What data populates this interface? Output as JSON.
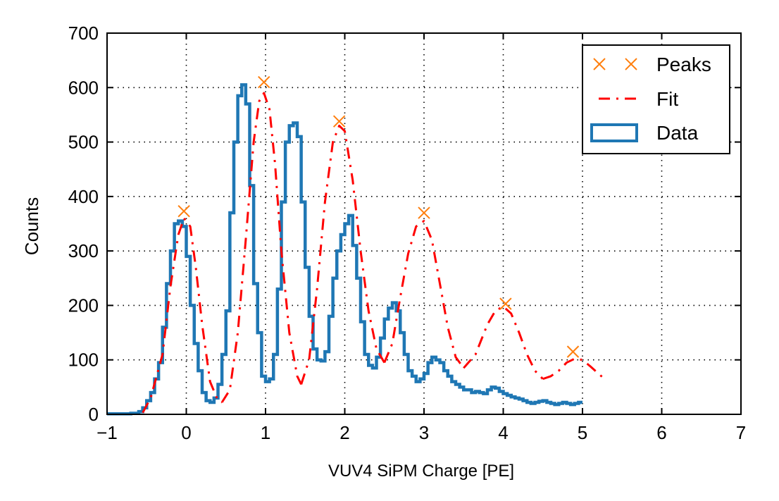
{
  "chart_data": {
    "type": "histogram",
    "title": "",
    "xlabel": "VUV4 SiPM Charge [PE]",
    "ylabel": "Counts",
    "xlim": [
      -1,
      7
    ],
    "ylim": [
      0,
      700
    ],
    "grid": true,
    "legend_position": "top-right",
    "x_ticks": [
      -1,
      0,
      1,
      2,
      3,
      4,
      5,
      6,
      7
    ],
    "x_tick_labels": [
      "−1",
      "0",
      "1",
      "2",
      "3",
      "4",
      "5",
      "6",
      "7"
    ],
    "y_ticks": [
      0,
      100,
      200,
      300,
      400,
      500,
      600,
      700
    ],
    "y_tick_labels": [
      "0",
      "100",
      "200",
      "300",
      "400",
      "500",
      "600",
      "700"
    ],
    "legend": [
      "Peaks",
      "Fit",
      "Data"
    ],
    "colors": {
      "data": "#1f77b4",
      "fit": "#ff0000",
      "peaks": "#ff7f0e"
    },
    "series": [
      {
        "name": "Peaks",
        "kind": "markers",
        "x": [
          -0.03,
          0.98,
          1.93,
          3.0,
          4.03,
          4.88
        ],
        "y": [
          373,
          610,
          538,
          370,
          203,
          115
        ]
      },
      {
        "name": "Fit",
        "kind": "dashdot-line",
        "segments": [
          {
            "x": [
              -0.55,
              -0.45,
              -0.3,
              -0.2,
              -0.1,
              -0.03,
              0.05,
              0.12,
              0.2,
              0.3,
              0.4,
              0.45
            ],
            "y": [
              3,
              30,
              110,
              235,
              330,
              360,
              345,
              270,
              165,
              60,
              25,
              22
            ]
          },
          {
            "x": [
              0.45,
              0.55,
              0.65,
              0.75,
              0.85,
              0.92,
              0.98,
              1.05,
              1.12,
              1.2,
              1.3,
              1.4,
              1.45
            ],
            "y": [
              22,
              45,
              150,
              320,
              500,
              575,
              590,
              560,
              460,
              300,
              150,
              70,
              55
            ]
          },
          {
            "x": [
              1.45,
              1.55,
              1.65,
              1.75,
              1.85,
              1.93,
              2.0,
              2.1,
              2.2,
              2.3,
              2.4,
              2.5
            ],
            "y": [
              55,
              100,
              230,
              390,
              500,
              530,
              520,
              430,
              300,
              190,
              120,
              95
            ]
          },
          {
            "x": [
              2.5,
              2.6,
              2.7,
              2.8,
              2.9,
              3.0,
              3.1,
              3.2,
              3.3,
              3.4,
              3.5
            ],
            "y": [
              95,
              130,
              215,
              295,
              345,
              355,
              320,
              240,
              160,
              105,
              85
            ]
          },
          {
            "x": [
              3.5,
              3.65,
              3.8,
              3.9,
              4.0,
              4.1,
              4.2,
              4.3,
              4.4,
              4.5
            ],
            "y": [
              85,
              110,
              165,
              190,
              198,
              185,
              150,
              110,
              80,
              65
            ]
          },
          {
            "x": [
              4.5,
              4.6,
              4.7,
              4.8,
              4.9,
              5.0,
              5.1,
              5.2,
              5.3
            ],
            "y": [
              65,
              70,
              80,
              95,
              102,
              100,
              88,
              75,
              62
            ]
          }
        ]
      },
      {
        "name": "Data",
        "kind": "step-histogram",
        "x_start": -1.0,
        "bin_width": 0.05,
        "values": [
          1,
          1,
          1,
          1,
          1,
          1,
          2,
          2,
          5,
          12,
          25,
          40,
          65,
          95,
          160,
          240,
          300,
          350,
          355,
          345,
          290,
          200,
          130,
          80,
          40,
          25,
          22,
          30,
          55,
          110,
          190,
          370,
          500,
          585,
          605,
          570,
          420,
          240,
          150,
          70,
          60,
          65,
          110,
          230,
          390,
          500,
          530,
          535,
          510,
          390,
          270,
          180,
          120,
          100,
          98,
          115,
          180,
          250,
          300,
          330,
          350,
          365,
          310,
          250,
          170,
          110,
          90,
          85,
          105,
          140,
          175,
          195,
          205,
          190,
          150,
          110,
          80,
          70,
          60,
          65,
          75,
          95,
          105,
          100,
          95,
          80,
          70,
          60,
          55,
          50,
          45,
          45,
          40,
          42,
          40,
          38,
          45,
          50,
          48,
          42,
          38,
          35,
          32,
          30,
          28,
          25,
          22,
          20,
          22,
          24,
          25,
          22,
          20,
          18,
          20,
          22,
          20,
          18,
          20,
          22
        ]
      }
    ]
  }
}
